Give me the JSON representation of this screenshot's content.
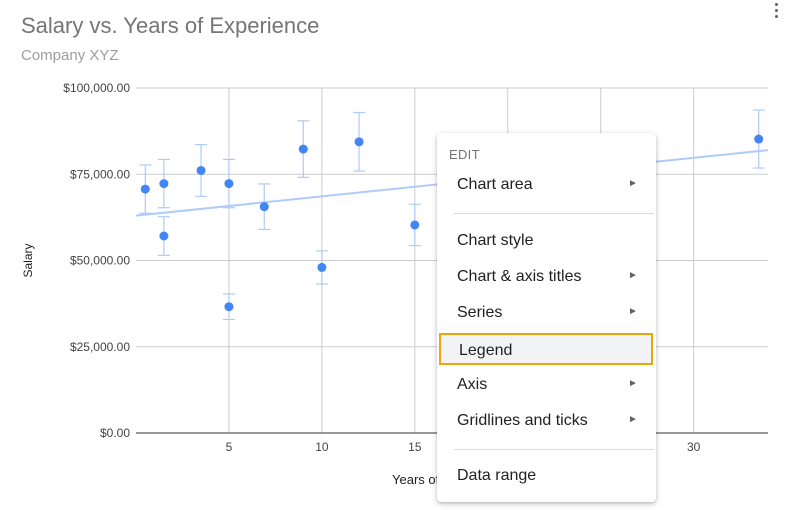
{
  "chart_data": {
    "type": "scatter",
    "title": "Salary vs. Years of Experience",
    "subtitle": "Company XYZ",
    "xlabel": "Years of Experience",
    "ylabel": "Salary",
    "xlim": [
      0,
      34
    ],
    "ylim": [
      0,
      100000
    ],
    "x_ticks": [
      5,
      10,
      15,
      30
    ],
    "y_tick_labels": [
      "$0.00",
      "$25,000.00",
      "$50,000.00",
      "$75,000.00",
      "$100,000.00"
    ],
    "y_ticks": [
      0,
      25000,
      50000,
      75000,
      100000
    ],
    "grid": true,
    "series": [
      {
        "name": "Salary",
        "color": "#4285f4",
        "x": [
          0.5,
          1.5,
          1.5,
          3.5,
          5,
          5,
          6.9,
          9,
          10,
          12,
          15,
          33.5
        ],
        "y": [
          70700,
          72300,
          57100,
          76100,
          72300,
          36600,
          65600,
          82300,
          48000,
          84400,
          60300,
          85200
        ],
        "error": [
          7000,
          7000,
          5600,
          7500,
          7000,
          3700,
          6600,
          8200,
          4800,
          8500,
          6000,
          8400
        ]
      }
    ],
    "trendline": {
      "color": "#aecbfa",
      "x": [
        0,
        34
      ],
      "y": [
        63000,
        82000
      ]
    }
  },
  "menu": {
    "header": "EDIT",
    "items": [
      {
        "label": "Chart area",
        "submenu": true
      },
      {
        "label": "Chart style",
        "submenu": false
      },
      {
        "label": "Chart & axis titles",
        "submenu": true
      },
      {
        "label": "Series",
        "submenu": true
      },
      {
        "label": "Legend",
        "submenu": false
      },
      {
        "label": "Axis",
        "submenu": true
      },
      {
        "label": "Gridlines and ticks",
        "submenu": true
      },
      {
        "label": "Data range",
        "submenu": false
      }
    ],
    "arrow_glyph": "►"
  },
  "colors": {
    "highlight_border": "#f0a30a"
  }
}
